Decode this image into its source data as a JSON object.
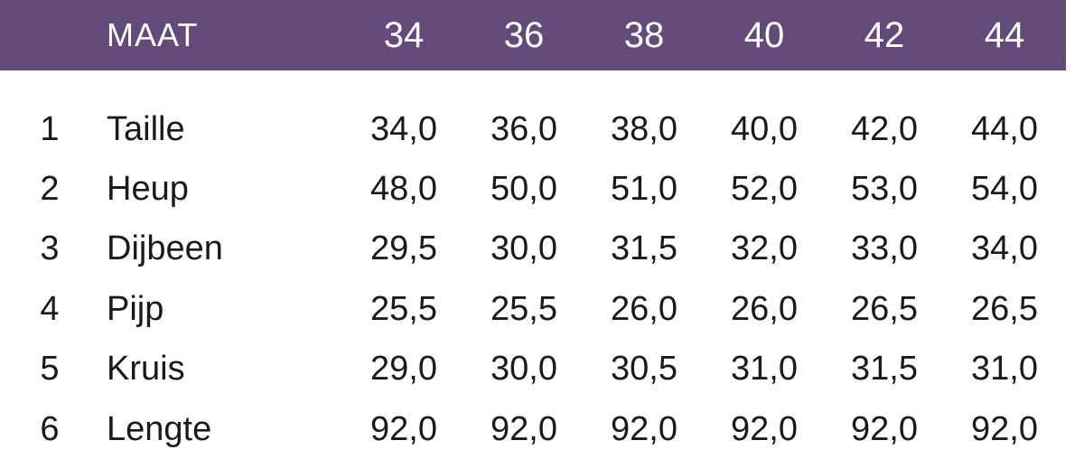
{
  "header": {
    "maat_label": "MAAT",
    "sizes": [
      "34",
      "36",
      "38",
      "40",
      "42",
      "44"
    ]
  },
  "colors": {
    "header_bg": "#634a7b",
    "header_text": "#ffffff",
    "body_text": "#1a1a1a"
  },
  "rows": [
    {
      "num": "1",
      "label": "Taille",
      "values": [
        "34,0",
        "36,0",
        "38,0",
        "40,0",
        "42,0",
        "44,0"
      ]
    },
    {
      "num": "2",
      "label": "Heup",
      "values": [
        "48,0",
        "50,0",
        "51,0",
        "52,0",
        "53,0",
        "54,0"
      ]
    },
    {
      "num": "3",
      "label": "Dijbeen",
      "values": [
        "29,5",
        "30,0",
        "31,5",
        "32,0",
        "33,0",
        "34,0"
      ]
    },
    {
      "num": "4",
      "label": "Pijp",
      "values": [
        "25,5",
        "25,5",
        "26,0",
        "26,0",
        "26,5",
        "26,5"
      ]
    },
    {
      "num": "5",
      "label": "Kruis",
      "values": [
        "29,0",
        "30,0",
        "30,5",
        "31,0",
        "31,5",
        "31,0"
      ]
    },
    {
      "num": "6",
      "label": "Lengte",
      "values": [
        "92,0",
        "92,0",
        "92,0",
        "92,0",
        "92,0",
        "92,0"
      ]
    }
  ]
}
